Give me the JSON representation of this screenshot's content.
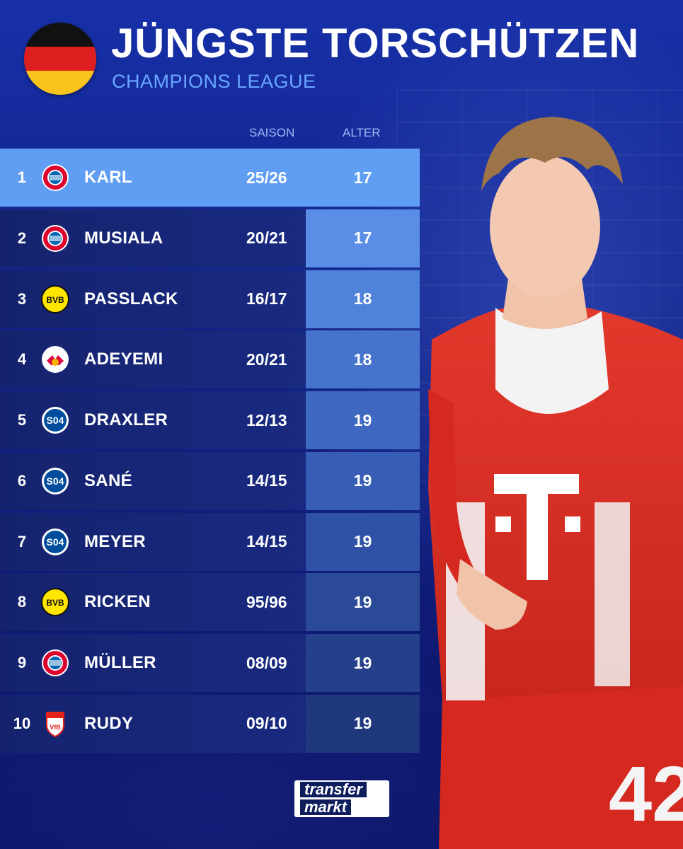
{
  "header": {
    "title": "JÜNGSTE TORSCHÜTZEN",
    "subtitle": "CHAMPIONS LEAGUE",
    "flag_colors": [
      "#111111",
      "#dd1f1f",
      "#f7c31c"
    ]
  },
  "columns": {
    "saison": "SAISON",
    "alter": "ALTER"
  },
  "rows": [
    {
      "rank": "1",
      "club_icon": "bayern-logo",
      "name": "KARL",
      "saison": "25/26",
      "alter": "17"
    },
    {
      "rank": "2",
      "club_icon": "bayern-logo",
      "name": "MUSIALA",
      "saison": "20/21",
      "alter": "17"
    },
    {
      "rank": "3",
      "club_icon": "bvb-logo",
      "name": "PASSLACK",
      "saison": "16/17",
      "alter": "18"
    },
    {
      "rank": "4",
      "club_icon": "leipzig-logo",
      "name": "ADEYEMI",
      "saison": "20/21",
      "alter": "18"
    },
    {
      "rank": "5",
      "club_icon": "schalke-logo",
      "name": "DRAXLER",
      "saison": "12/13",
      "alter": "19"
    },
    {
      "rank": "6",
      "club_icon": "schalke-logo",
      "name": "SANÉ",
      "saison": "14/15",
      "alter": "19"
    },
    {
      "rank": "7",
      "club_icon": "schalke-logo",
      "name": "MEYER",
      "saison": "14/15",
      "alter": "19"
    },
    {
      "rank": "8",
      "club_icon": "bvb-logo",
      "name": "RICKEN",
      "saison": "95/96",
      "alter": "19"
    },
    {
      "rank": "9",
      "club_icon": "bayern-logo",
      "name": "MÜLLER",
      "saison": "08/09",
      "alter": "19"
    },
    {
      "rank": "10",
      "club_icon": "stuttgart-logo",
      "name": "RUDY",
      "saison": "09/10",
      "alter": "19"
    }
  ],
  "alter_shades": [
    "#5f9ef2",
    "#5a8ee6",
    "#4f82da",
    "#4674cd",
    "#3e68c1",
    "#375db4",
    "#3052a6",
    "#2a4a98",
    "#25408a",
    "#1f377c"
  ],
  "player": {
    "shirt_number": "42"
  },
  "brand": {
    "line1": "transfer",
    "line2": "markt"
  }
}
